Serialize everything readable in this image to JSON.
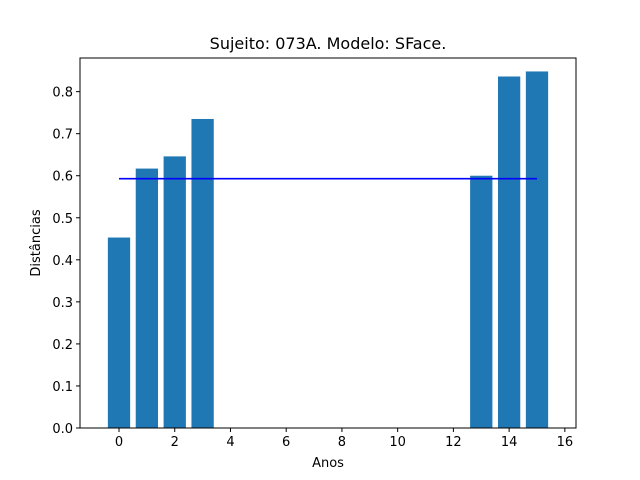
{
  "chart_data": {
    "type": "bar",
    "title": "Sujeito: 073A. Modelo: SFace.",
    "xlabel": "Anos",
    "ylabel": "Distâncias",
    "x": [
      0,
      1,
      2,
      3,
      13,
      14,
      15
    ],
    "values": [
      0.453,
      0.617,
      0.646,
      0.735,
      0.6,
      0.836,
      0.848
    ],
    "bar_color": "#1f77b4",
    "reference_line": {
      "y": 0.593,
      "x_start": 0,
      "x_end": 15,
      "color": "#0000ff"
    },
    "xlim": [
      -1.4,
      16.4
    ],
    "ylim": [
      0,
      0.88
    ],
    "xticks": [
      0,
      2,
      4,
      6,
      8,
      10,
      12,
      14,
      16
    ],
    "yticks": [
      0.0,
      0.1,
      0.2,
      0.3,
      0.4,
      0.5,
      0.6,
      0.7,
      0.8
    ],
    "grid": false,
    "legend": "none"
  }
}
